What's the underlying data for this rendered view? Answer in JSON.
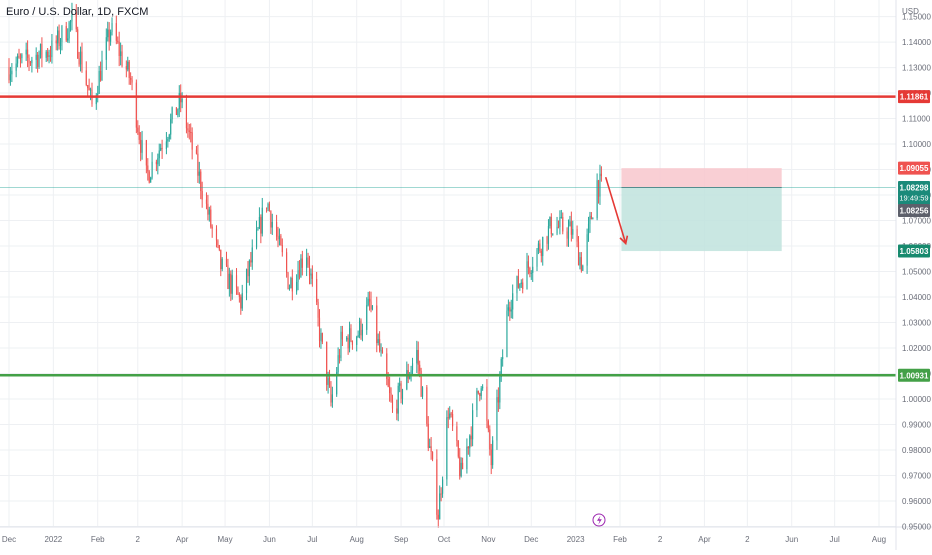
{
  "symbol": {
    "title": "Euro / U.S. Dollar, 1D, FXCM"
  },
  "axis": {
    "currency": "USD"
  },
  "colors": {
    "up": "#26a69a",
    "down": "#ef5350",
    "resistance": "#e53935",
    "support": "#43a047",
    "current_tag": "#1b8a7a",
    "sl_zone": "#f8c7cc",
    "tp_zone": "#bfe3dd",
    "grid": "#eef0f3",
    "axis_text": "#6a6d78",
    "arrow": "#e53935",
    "lightning": "#9c27b0"
  },
  "chart_data": {
    "type": "candlestick",
    "title": "Euro / U.S. Dollar, 1D, FXCM",
    "ylabel": "USD",
    "ylim": [
      0.9498,
      1.1565
    ],
    "y_ticks": [
      "0.95000",
      "0.96000",
      "0.97000",
      "0.98000",
      "0.99000",
      "1.00000",
      "1.01000",
      "1.02000",
      "1.03000",
      "1.04000",
      "1.05000",
      "1.06000",
      "1.07000",
      "1.08000",
      "1.09000",
      "1.10000",
      "1.11000",
      "1.12000",
      "1.13000",
      "1.14000",
      "1.15000"
    ],
    "x_ticks": [
      "Dec",
      "2022",
      "Feb",
      "2",
      "Apr",
      "May",
      "Jun",
      "Jul",
      "Aug",
      "Sep",
      "Oct",
      "Nov",
      "Dec",
      "2023",
      "Feb",
      "2",
      "Apr",
      "2",
      "Jun",
      "Jul",
      "Aug"
    ],
    "grid": true,
    "price_path": [
      {
        "date": "2021-12-01",
        "price": 1.13
      },
      {
        "date": "2021-12-31",
        "price": 1.137
      },
      {
        "date": "2022-01-14",
        "price": 1.148
      },
      {
        "date": "2022-01-28",
        "price": 1.115
      },
      {
        "date": "2022-02-10",
        "price": 1.145
      },
      {
        "date": "2022-02-24",
        "price": 1.125
      },
      {
        "date": "2022-03-07",
        "price": 1.087
      },
      {
        "date": "2022-03-31",
        "price": 1.117
      },
      {
        "date": "2022-04-28",
        "price": 1.052
      },
      {
        "date": "2022-05-12",
        "price": 1.038
      },
      {
        "date": "2022-05-30",
        "price": 1.078
      },
      {
        "date": "2022-06-15",
        "price": 1.045
      },
      {
        "date": "2022-06-27",
        "price": 1.058
      },
      {
        "date": "2022-07-14",
        "price": 0.998
      },
      {
        "date": "2022-07-21",
        "price": 1.022
      },
      {
        "date": "2022-08-02",
        "price": 1.026
      },
      {
        "date": "2022-08-10",
        "price": 1.037
      },
      {
        "date": "2022-08-26",
        "price": 0.995
      },
      {
        "date": "2022-09-12",
        "price": 1.018
      },
      {
        "date": "2022-09-27",
        "price": 0.955
      },
      {
        "date": "2022-10-04",
        "price": 0.996
      },
      {
        "date": "2022-10-13",
        "price": 0.97
      },
      {
        "date": "2022-10-27",
        "price": 1.008
      },
      {
        "date": "2022-11-03",
        "price": 0.975
      },
      {
        "date": "2022-11-15",
        "price": 1.038
      },
      {
        "date": "2022-12-05",
        "price": 1.058
      },
      {
        "date": "2022-12-15",
        "price": 1.068
      },
      {
        "date": "2022-12-29",
        "price": 1.066
      },
      {
        "date": "2023-01-06",
        "price": 1.052
      },
      {
        "date": "2023-01-16",
        "price": 1.085
      },
      {
        "date": "2023-01-19",
        "price": 1.083
      }
    ],
    "levels": [
      {
        "name": "resistance",
        "price": "1.11861",
        "value": 1.11861
      },
      {
        "name": "support",
        "price": "1.00931",
        "value": 1.00931
      }
    ],
    "current": {
      "price": "1.08298",
      "value": 1.08298,
      "countdown": "19:49:59"
    },
    "last_close": {
      "price": "1.08256",
      "value": 1.08256
    },
    "position": {
      "type": "short",
      "stop_loss": {
        "price": "1.09055",
        "value": 1.09055
      },
      "entry": 1.08298,
      "take_profit": {
        "price": "1.05803",
        "value": 1.05803
      },
      "start_date": "2023-02-02",
      "end_date": "2023-05-25"
    },
    "annotation_arrow": {
      "start_date": "2023-01-22",
      "start_price": 1.087,
      "end_date": "2023-02-05",
      "end_price": 1.061
    }
  }
}
